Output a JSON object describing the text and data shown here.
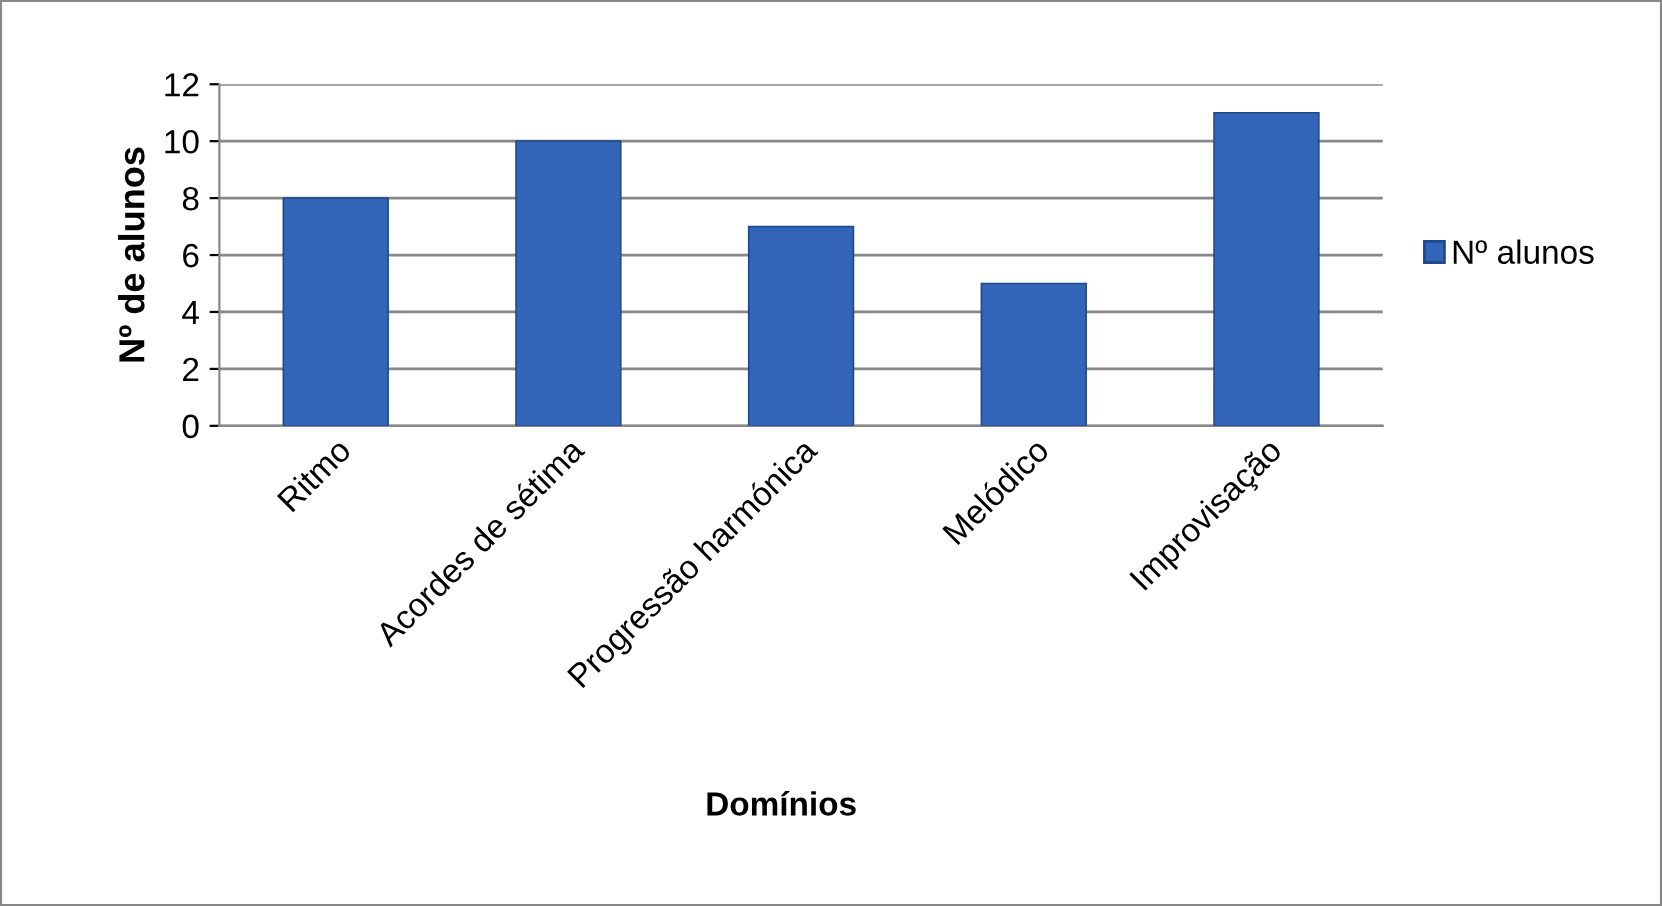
{
  "chart_data": {
    "type": "bar",
    "xlabel": "Domínios",
    "ylabel": "Nº de alunos",
    "categories": [
      "Ritmo",
      "Acordes de sétima",
      "Progressão harmónica",
      "Melódico",
      "Improvisação"
    ],
    "series": [
      {
        "name": "Nº alunos",
        "color": "#3366b8",
        "values": [
          8,
          10,
          7,
          5,
          11
        ]
      }
    ],
    "ylim": [
      0,
      12
    ],
    "yticks": [
      0,
      2,
      4,
      6,
      8,
      10,
      12
    ],
    "grid": "y",
    "legend": "right"
  }
}
